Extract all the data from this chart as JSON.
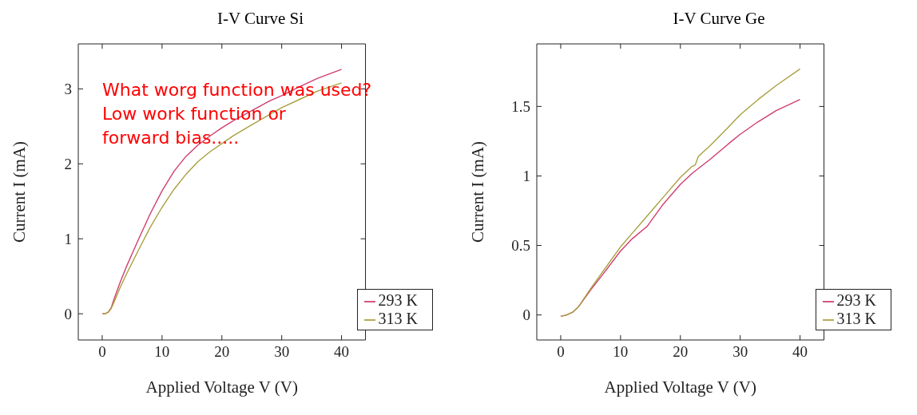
{
  "chart_data": [
    {
      "type": "line",
      "title": "I-V Curve Si",
      "xlabel": "Applied Voltage V (V)",
      "ylabel": "Current I (mA)",
      "xlim": [
        -4,
        44
      ],
      "xticks": [
        0,
        10,
        20,
        30,
        40
      ],
      "ylim": [
        -0.35,
        3.6
      ],
      "yticks": [
        0,
        1,
        2,
        3
      ],
      "legend": "bottom right",
      "marker": "none",
      "line_style": "solid",
      "annotations": [
        "What worg function was used?\nLow work function or\nforward bias....."
      ],
      "series": [
        {
          "name": "293 K",
          "color": "#d13d6e",
          "x": [
            0,
            0.5,
            1,
            1.5,
            2,
            3,
            4,
            5,
            6,
            8,
            10,
            12,
            14,
            16,
            18,
            20,
            22,
            25,
            28,
            30,
            33,
            36,
            40
          ],
          "values": [
            0,
            0,
            0.02,
            0.08,
            0.2,
            0.42,
            0.62,
            0.8,
            0.98,
            1.33,
            1.64,
            1.9,
            2.1,
            2.25,
            2.37,
            2.48,
            2.58,
            2.71,
            2.84,
            2.91,
            3.03,
            3.14,
            3.26
          ]
        },
        {
          "name": "313 K",
          "color": "#a8a040",
          "x": [
            0,
            0.5,
            1,
            1.5,
            2,
            3,
            4,
            5,
            6,
            8,
            10,
            12,
            14,
            16,
            18,
            20,
            22,
            25,
            28,
            30,
            33,
            36,
            40
          ],
          "values": [
            0,
            0,
            0.02,
            0.07,
            0.16,
            0.35,
            0.52,
            0.68,
            0.84,
            1.15,
            1.42,
            1.66,
            1.86,
            2.03,
            2.16,
            2.27,
            2.38,
            2.52,
            2.66,
            2.75,
            2.86,
            2.97,
            3.08
          ]
        }
      ]
    },
    {
      "type": "line",
      "title": "I-V Curve Ge",
      "xlabel": "Applied Voltage V (V)",
      "ylabel": "Current I (mA)",
      "xlim": [
        -4,
        44
      ],
      "xticks": [
        0,
        10,
        20,
        30,
        40
      ],
      "ylim": [
        -0.18,
        1.95
      ],
      "yticks": [
        0,
        0.5,
        1,
        1.5
      ],
      "legend": "bottom right",
      "marker": "none",
      "line_style": "solid",
      "series": [
        {
          "name": "293 K",
          "color": "#d13d6e",
          "x": [
            0,
            1,
            2,
            3,
            5,
            7,
            10,
            12,
            14.5,
            15,
            17,
            20,
            22,
            25,
            28,
            30,
            33,
            36,
            40
          ],
          "values": [
            -0.01,
            0,
            0.02,
            0.06,
            0.18,
            0.29,
            0.46,
            0.55,
            0.64,
            0.67,
            0.79,
            0.94,
            1.02,
            1.12,
            1.23,
            1.3,
            1.39,
            1.47,
            1.55
          ]
        },
        {
          "name": "313 K",
          "color": "#a8a040",
          "x": [
            0,
            1,
            2,
            3,
            5,
            7,
            10,
            12,
            14,
            17,
            20,
            21,
            22,
            22.5,
            23,
            25,
            28,
            30,
            33,
            36,
            40
          ],
          "values": [
            -0.01,
            0,
            0.02,
            0.06,
            0.19,
            0.31,
            0.49,
            0.59,
            0.69,
            0.84,
            0.99,
            1.03,
            1.07,
            1.08,
            1.14,
            1.22,
            1.35,
            1.44,
            1.55,
            1.65,
            1.77
          ]
        }
      ]
    }
  ]
}
